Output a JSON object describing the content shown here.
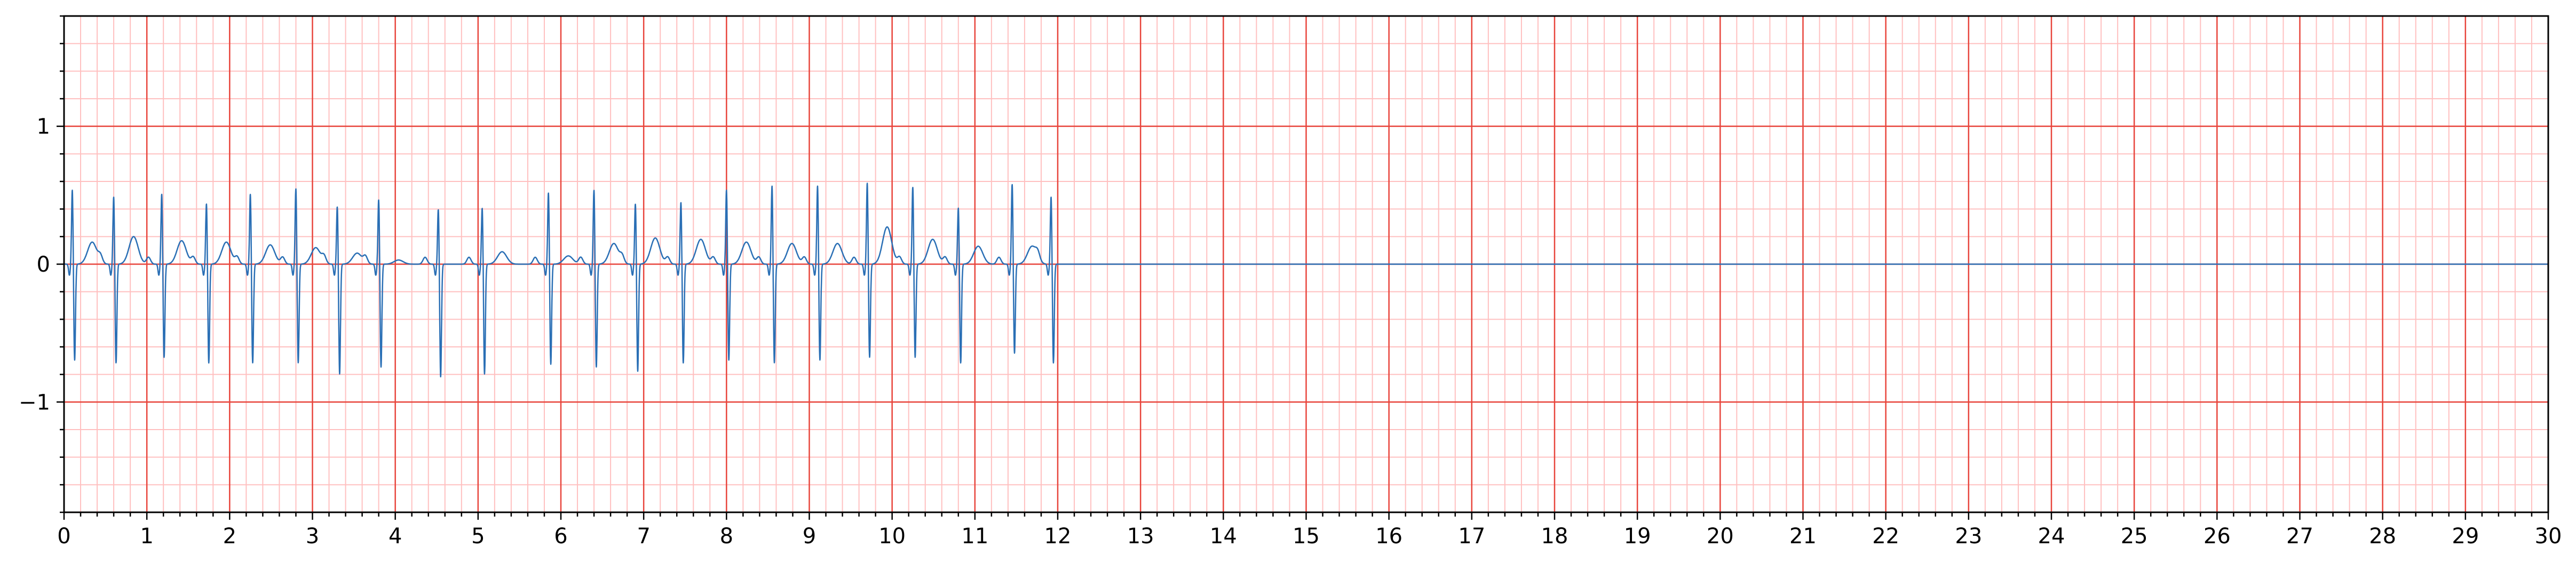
{
  "chart_data": {
    "type": "line",
    "title": "",
    "xlabel": "",
    "ylabel": "",
    "xlim": [
      0,
      30
    ],
    "ylim": [
      -1.8,
      1.8
    ],
    "x_ticks": [
      0,
      1,
      2,
      3,
      4,
      5,
      6,
      7,
      8,
      9,
      10,
      11,
      12,
      13,
      14,
      15,
      16,
      17,
      18,
      19,
      20,
      21,
      22,
      23,
      24,
      25,
      26,
      27,
      28,
      29,
      30
    ],
    "x_tick_labels": [
      "0",
      "1",
      "2",
      "3",
      "4",
      "5",
      "6",
      "7",
      "8",
      "9",
      "10",
      "11",
      "12",
      "13",
      "14",
      "15",
      "16",
      "17",
      "18",
      "19",
      "20",
      "21",
      "22",
      "23",
      "24",
      "25",
      "26",
      "27",
      "28",
      "29",
      "30"
    ],
    "y_ticks": [
      -1,
      0,
      1
    ],
    "y_tick_labels": [
      "−1",
      "0",
      "1"
    ],
    "grid": {
      "major": true,
      "minor": true,
      "x_major_step": 1,
      "x_minor_step": 0.2,
      "y_major_step": 1,
      "y_minor_step": 0.2,
      "major_color": "#e8453c",
      "minor_color": "#ffc0c0"
    },
    "series": [
      {
        "color": "#2a6fb5",
        "signal_end": 12.0,
        "flat_value": 0.0,
        "beats": [
          {
            "t": 0.1,
            "r": 0.55,
            "s": -0.7,
            "t_wave": 0.16
          },
          {
            "t": 0.6,
            "r": 0.5,
            "s": -0.72,
            "t_wave": 0.2
          },
          {
            "t": 1.18,
            "r": 0.52,
            "s": -0.68,
            "t_wave": 0.17
          },
          {
            "t": 1.72,
            "r": 0.45,
            "s": -0.72,
            "t_wave": 0.16
          },
          {
            "t": 2.25,
            "r": 0.52,
            "s": -0.72,
            "t_wave": 0.14
          },
          {
            "t": 2.8,
            "r": 0.56,
            "s": -0.72,
            "t_wave": 0.12
          },
          {
            "t": 3.3,
            "r": 0.43,
            "s": -0.8,
            "t_wave": 0.08
          },
          {
            "t": 3.8,
            "r": 0.48,
            "s": -0.75,
            "t_wave": 0.03
          },
          {
            "t": 4.52,
            "r": 0.41,
            "s": -0.82,
            "t_wave": 0.0
          },
          {
            "t": 5.05,
            "r": 0.42,
            "s": -0.8,
            "t_wave": 0.09
          },
          {
            "t": 5.85,
            "r": 0.53,
            "s": -0.73,
            "t_wave": 0.06
          },
          {
            "t": 6.4,
            "r": 0.55,
            "s": -0.75,
            "t_wave": 0.15
          },
          {
            "t": 6.9,
            "r": 0.45,
            "s": -0.78,
            "t_wave": 0.19
          },
          {
            "t": 7.45,
            "r": 0.46,
            "s": -0.72,
            "t_wave": 0.18
          },
          {
            "t": 8.0,
            "r": 0.55,
            "s": -0.7,
            "t_wave": 0.16
          },
          {
            "t": 8.55,
            "r": 0.58,
            "s": -0.72,
            "t_wave": 0.15
          },
          {
            "t": 9.1,
            "r": 0.58,
            "s": -0.7,
            "t_wave": 0.15
          },
          {
            "t": 9.7,
            "r": 0.6,
            "s": -0.68,
            "t_wave": 0.27
          },
          {
            "t": 10.25,
            "r": 0.57,
            "s": -0.68,
            "t_wave": 0.18
          },
          {
            "t": 10.8,
            "r": 0.42,
            "s": -0.72,
            "t_wave": 0.13
          },
          {
            "t": 11.45,
            "r": 0.59,
            "s": -0.65,
            "t_wave": 0.13
          },
          {
            "t": 11.92,
            "r": 0.5,
            "s": -0.72,
            "t_wave": 0.0
          }
        ]
      }
    ]
  }
}
